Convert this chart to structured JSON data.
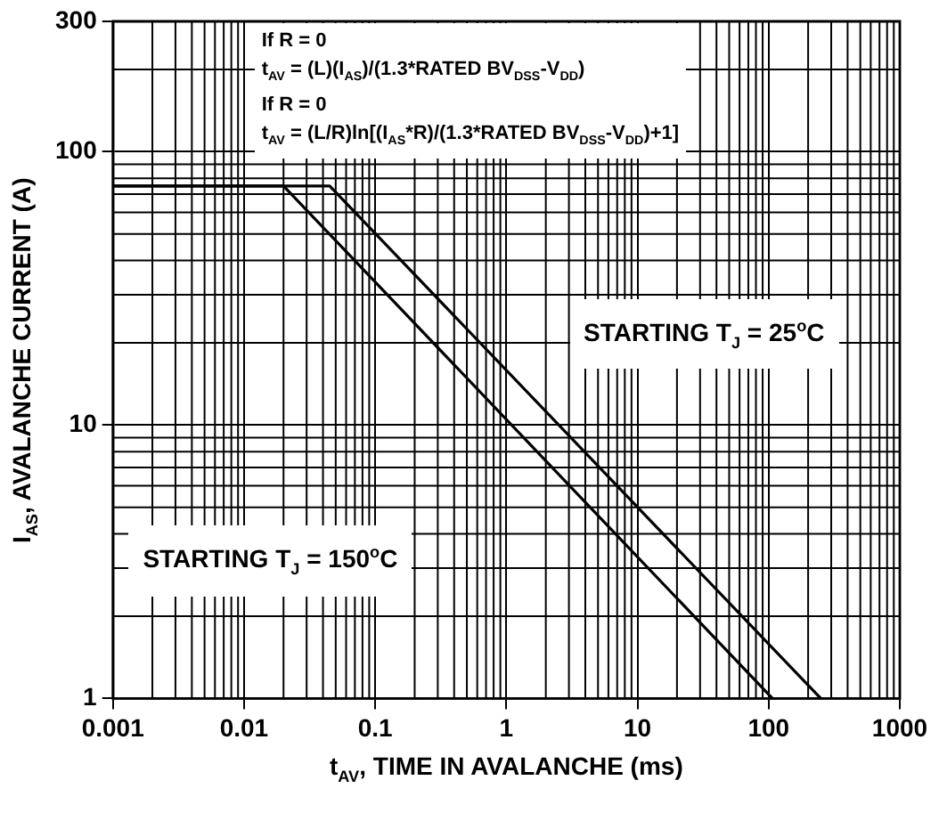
{
  "chart_data": {
    "type": "line",
    "xlabel": "t$_{AV}$, TIME IN AVALANCHE (ms)",
    "ylabel": "I$_{AS}$, AVALANCHE CURRENT (A)",
    "annotations": [
      "If R = 0",
      "t$_{AV}$ = (L)(I$_{AS}$)/(1.3*RATED BV$_{DSS}$-V$_{DD}$)",
      "If R = 0",
      "t$_{AV}$ = (L/R)ln[(I$_{AS}$*R)/(1.3*RATED BV$_{DSS}$-V$_{DD}$)+1]",
      "STARTING T$_{J}$ = 150$^{o}$C"
    ],
    "series": [
      {
        "name": "STARTING T$_{J}$ = 25$^{o}$C",
        "color": "#000000",
        "x": [
          0.001,
          0.045,
          250
        ],
        "values": [
          75,
          75,
          1
        ]
      },
      {
        "color": "#000000",
        "x": [
          0.001,
          0.02,
          107
        ],
        "values": [
          75,
          75,
          1
        ]
      }
    ],
    "log": "xy",
    "xlim": [
      0.001,
      1000
    ],
    "xticks": [
      0.001,
      0.01,
      0.1,
      1,
      10,
      100,
      1000
    ],
    "ylim": [
      1,
      300
    ],
    "yticks": [
      1,
      10,
      100,
      300
    ],
    "grid": true,
    "legend": false,
    "marker": "none",
    "line_style": "solid"
  }
}
